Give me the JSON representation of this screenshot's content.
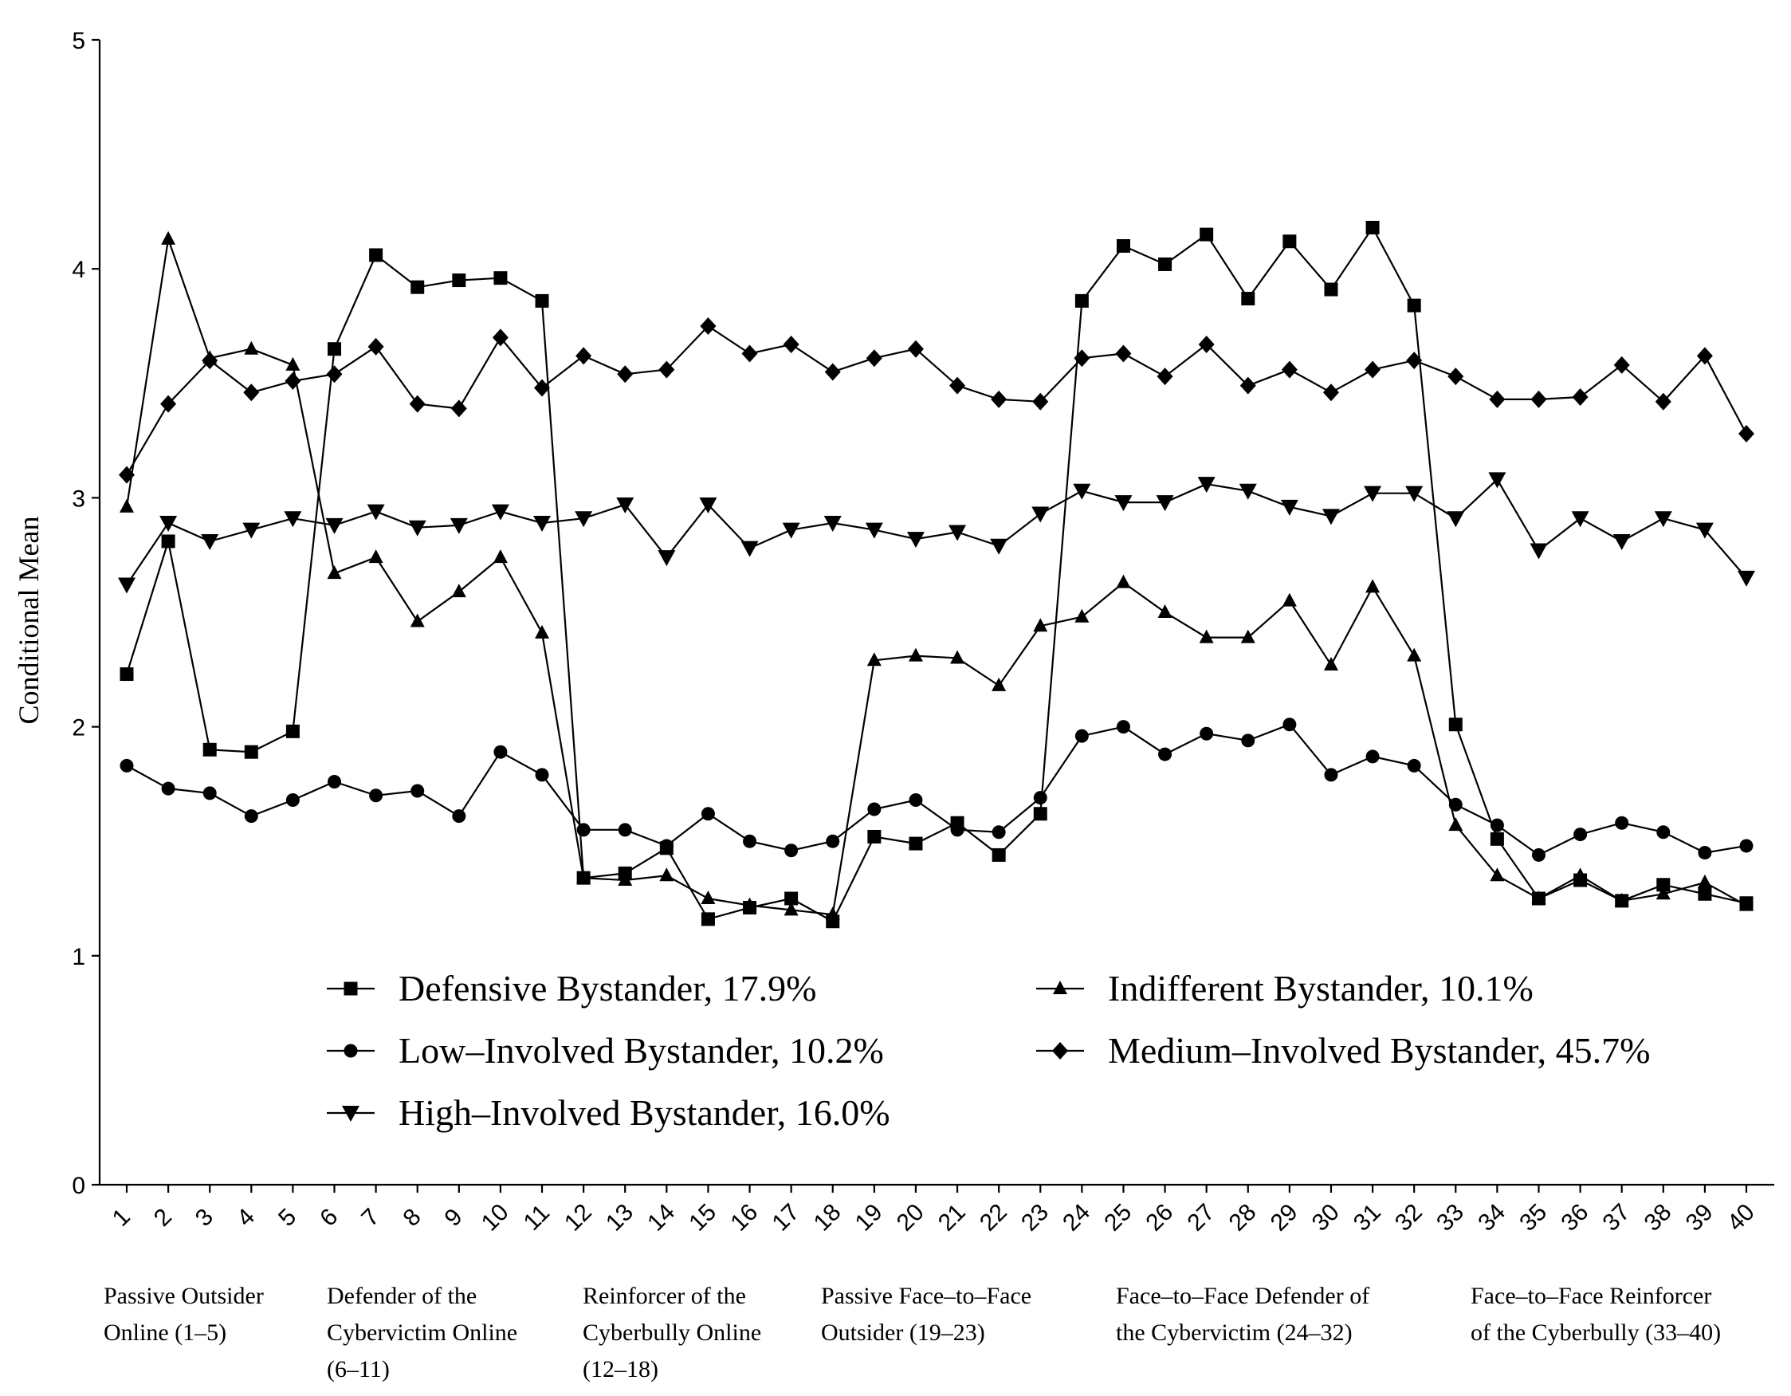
{
  "chart_data": {
    "type": "line",
    "title": "",
    "xlabel": "",
    "ylabel": "Conditional Mean",
    "ylim": [
      0,
      5
    ],
    "yticks": [
      0,
      1,
      2,
      3,
      4,
      5
    ],
    "grid": false,
    "legend_position": "bottom-center",
    "x": [
      1,
      2,
      3,
      4,
      5,
      6,
      7,
      8,
      9,
      10,
      11,
      12,
      13,
      14,
      15,
      16,
      17,
      18,
      19,
      20,
      21,
      22,
      23,
      24,
      25,
      26,
      27,
      28,
      29,
      30,
      31,
      32,
      33,
      34,
      35,
      36,
      37,
      38,
      39,
      40
    ],
    "x_labels": [
      "1",
      "2",
      "3",
      "4",
      "5",
      "6",
      "7",
      "8",
      "9",
      "10",
      "11",
      "12",
      "13",
      "14",
      "15",
      "16",
      "17",
      "18",
      "19",
      "20",
      "21",
      "22",
      "23",
      "24",
      "25",
      "26",
      "27",
      "28",
      "29",
      "30",
      "31",
      "32",
      "33",
      "34",
      "35",
      "36",
      "37",
      "38",
      "39",
      "40"
    ],
    "series": [
      {
        "name": "Defensive Bystander, 17.9%",
        "marker": "square",
        "values": [
          2.23,
          2.81,
          1.9,
          1.89,
          1.98,
          3.65,
          4.06,
          3.92,
          3.95,
          3.96,
          3.86,
          1.34,
          1.36,
          1.47,
          1.16,
          1.21,
          1.25,
          1.15,
          1.52,
          1.49,
          1.58,
          1.44,
          1.62,
          3.86,
          4.1,
          4.02,
          4.15,
          3.87,
          4.12,
          3.91,
          4.18,
          3.84,
          2.01,
          1.51,
          1.25,
          1.33,
          1.24,
          1.31,
          1.27,
          1.23
        ]
      },
      {
        "name": "Low–Involved Bystander, 10.2%",
        "marker": "circle",
        "values": [
          1.83,
          1.73,
          1.71,
          1.61,
          1.68,
          1.76,
          1.7,
          1.72,
          1.61,
          1.89,
          1.79,
          1.55,
          1.55,
          1.48,
          1.62,
          1.5,
          1.46,
          1.5,
          1.64,
          1.68,
          1.55,
          1.54,
          1.69,
          1.96,
          2.0,
          1.88,
          1.97,
          1.94,
          2.01,
          1.79,
          1.87,
          1.83,
          1.66,
          1.57,
          1.44,
          1.53,
          1.58,
          1.54,
          1.45,
          1.48
        ]
      },
      {
        "name": "High–Involved Bystander, 16.0%",
        "marker": "triangle-down",
        "values": [
          2.62,
          2.89,
          2.81,
          2.86,
          2.91,
          2.88,
          2.94,
          2.87,
          2.88,
          2.94,
          2.89,
          2.91,
          2.97,
          2.74,
          2.97,
          2.78,
          2.86,
          2.89,
          2.86,
          2.82,
          2.85,
          2.79,
          2.93,
          3.03,
          2.98,
          2.98,
          3.06,
          3.03,
          2.96,
          2.92,
          3.02,
          3.02,
          2.91,
          3.08,
          2.77,
          2.91,
          2.81,
          2.91,
          2.86,
          2.65
        ]
      },
      {
        "name": "Indifferent Bystander, 10.1%",
        "marker": "triangle-up",
        "values": [
          2.96,
          4.13,
          3.61,
          3.65,
          3.58,
          2.67,
          2.74,
          2.46,
          2.59,
          2.74,
          2.41,
          1.34,
          1.33,
          1.35,
          1.25,
          1.22,
          1.2,
          1.18,
          2.29,
          2.31,
          2.3,
          2.18,
          2.44,
          2.48,
          2.63,
          2.5,
          2.39,
          2.39,
          2.55,
          2.27,
          2.61,
          2.31,
          1.57,
          1.35,
          1.25,
          1.35,
          1.24,
          1.27,
          1.32,
          1.22
        ]
      },
      {
        "name": "Medium–Involved Bystander, 45.7%",
        "marker": "diamond",
        "values": [
          3.1,
          3.41,
          3.6,
          3.46,
          3.51,
          3.54,
          3.66,
          3.41,
          3.39,
          3.7,
          3.48,
          3.62,
          3.54,
          3.56,
          3.75,
          3.63,
          3.67,
          3.55,
          3.61,
          3.65,
          3.49,
          3.43,
          3.42,
          3.61,
          3.63,
          3.53,
          3.67,
          3.49,
          3.56,
          3.46,
          3.56,
          3.6,
          3.53,
          3.43,
          3.43,
          3.44,
          3.58,
          3.42,
          3.62,
          3.28
        ]
      }
    ],
    "legend": [
      "Defensive Bystander, 17.9%",
      "Low–Involved Bystander, 10.2%",
      "High–Involved Bystander, 16.0%",
      "Indifferent Bystander, 10.1%",
      "Medium–Involved Bystander, 45.7%"
    ],
    "group_labels": [
      {
        "lines": [
          "Passive Outsider",
          "Online (1–5)"
        ]
      },
      {
        "lines": [
          "Defender of the",
          "Cybervictim Online",
          "(6–11)"
        ]
      },
      {
        "lines": [
          "Reinforcer of the",
          "Cyberbully Online",
          "(12–18)"
        ]
      },
      {
        "lines": [
          "Passive Face–to–Face",
          "Outsider (19–23)"
        ]
      },
      {
        "lines": [
          "Face–to–Face Defender of",
          "the Cybervictim (24–32)"
        ]
      },
      {
        "lines": [
          "Face–to–Face Reinforcer",
          "of the Cyberbully (33–40)"
        ]
      }
    ]
  }
}
